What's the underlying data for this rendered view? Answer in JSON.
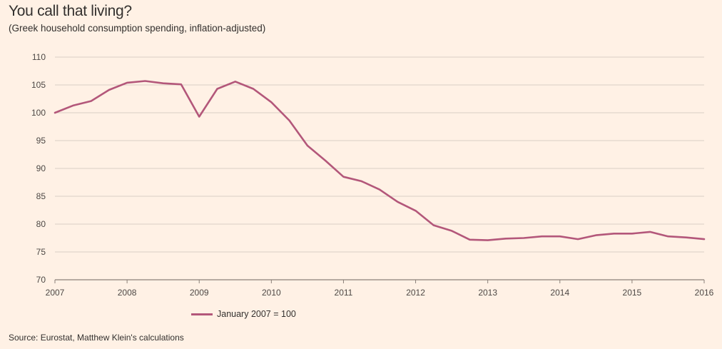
{
  "header": {
    "title": "You call that living?",
    "subtitle": "(Greek household consumption spending, inflation-adjusted)"
  },
  "footer": {
    "source": "Source: Eurostat, Matthew Klein's calculations"
  },
  "colors": {
    "background": "#fff1e5",
    "line": "#b3577a",
    "grid": "#d9cec5",
    "axis": "#8a8079"
  },
  "chart_data": {
    "type": "line",
    "title": "You call that living?",
    "subtitle": "(Greek household consumption spending, inflation-adjusted)",
    "xlabel": "",
    "ylabel": "",
    "xlim": [
      2007,
      2016
    ],
    "ylim": [
      70,
      110
    ],
    "x_ticks": [
      "2007",
      "2008",
      "2009",
      "2010",
      "2011",
      "2012",
      "2013",
      "2014",
      "2015",
      "2016"
    ],
    "y_ticks": [
      "70",
      "75",
      "80",
      "85",
      "90",
      "95",
      "100",
      "105",
      "110"
    ],
    "grid": true,
    "legend_position": "bottom-left",
    "series": [
      {
        "name": "January 2007 = 100",
        "x": [
          2007.0,
          2007.25,
          2007.5,
          2007.75,
          2008.0,
          2008.25,
          2008.5,
          2008.75,
          2009.0,
          2009.25,
          2009.5,
          2009.75,
          2010.0,
          2010.25,
          2010.5,
          2010.75,
          2011.0,
          2011.25,
          2011.5,
          2011.75,
          2012.0,
          2012.25,
          2012.5,
          2012.75,
          2013.0,
          2013.25,
          2013.5,
          2013.75,
          2014.0,
          2014.25,
          2014.5,
          2014.75,
          2015.0,
          2015.25,
          2015.5,
          2015.75,
          2016.0
        ],
        "values": [
          100,
          101.3,
          102.1,
          104.1,
          105.4,
          105.7,
          105.3,
          105.1,
          99.3,
          104.3,
          105.6,
          104.3,
          101.9,
          98.6,
          94.1,
          91.4,
          88.5,
          87.7,
          86.2,
          84.0,
          82.4,
          79.8,
          78.8,
          77.2,
          77.1,
          77.4,
          77.5,
          77.8,
          77.8,
          77.3,
          78.0,
          78.3,
          78.3,
          78.6,
          77.8,
          77.6,
          77.3
        ]
      }
    ]
  }
}
